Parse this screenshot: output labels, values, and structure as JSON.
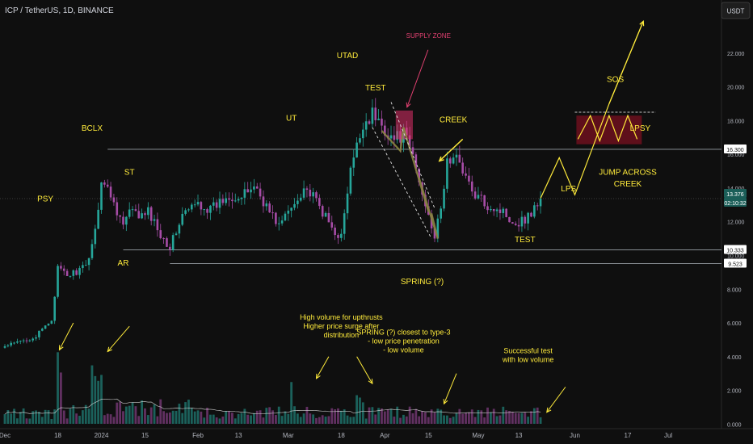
{
  "header": {
    "symbol": "ICP / TetherUS, 1D, BINANCE",
    "currency_button": "USDT"
  },
  "colors": {
    "background": "#0f0f0f",
    "up": "#26a69a",
    "down": "#a64ca6",
    "annotation": "#ffeb3b",
    "supply": "#e04070",
    "level_line": "#c9d1d9",
    "ma": "#e0e0e0",
    "axis_text": "#b2b5be"
  },
  "chart_data": {
    "type": "candlestick",
    "y_axis": {
      "ticks": [
        "22.000",
        "20.000",
        "18.000",
        "16.000",
        "14.000",
        "12.000",
        "10.000",
        "8.000",
        "6.000",
        "4.000",
        "2.000",
        "0.000"
      ],
      "tick_values": [
        22,
        20,
        18,
        16,
        14,
        12,
        10,
        8,
        6,
        4,
        2,
        0
      ],
      "ylim": [
        -0.2,
        24.6
      ]
    },
    "x_axis": {
      "ticks": [
        "Dec",
        "18",
        "2024",
        "15",
        "Feb",
        "13",
        "Mar",
        "18",
        "Apr",
        "15",
        "May",
        "13",
        "Jun",
        "17",
        "Jul"
      ],
      "tick_days": [
        0,
        17,
        31,
        45,
        62,
        75,
        91,
        108,
        122,
        136,
        152,
        165,
        183,
        200,
        213
      ]
    },
    "price_labels": [
      {
        "text": "16.300",
        "value": 16.3,
        "style": "level"
      },
      {
        "text": "13.376",
        "value": 13.376,
        "style": "last"
      },
      {
        "text": "02:10:32",
        "value": 13.376,
        "style": "timer"
      },
      {
        "text": "10.333",
        "value": 10.333,
        "style": "level"
      },
      {
        "text": "9.523",
        "value": 9.523,
        "style": "level"
      }
    ],
    "horizontal_levels": [
      {
        "value": 16.3,
        "start_day": 33
      },
      {
        "value": 10.333,
        "start_day": 38
      },
      {
        "value": 9.523,
        "start_day": 53
      }
    ],
    "current_price": 13.376,
    "anchors": [
      [
        0,
        4.6
      ],
      [
        10,
        5.2
      ],
      [
        15,
        6.2
      ],
      [
        17,
        9.2
      ],
      [
        20,
        8.8
      ],
      [
        26,
        9.3
      ],
      [
        29,
        11.5
      ],
      [
        31,
        14.5
      ],
      [
        34,
        13.6
      ],
      [
        38,
        11.8
      ],
      [
        40,
        12.6
      ],
      [
        44,
        12.3
      ],
      [
        46,
        12.6
      ],
      [
        50,
        11.3
      ],
      [
        53,
        10.5
      ],
      [
        57,
        12.4
      ],
      [
        62,
        13.1
      ],
      [
        66,
        12.7
      ],
      [
        72,
        13.6
      ],
      [
        76,
        13.4
      ],
      [
        80,
        14.2
      ],
      [
        85,
        12.6
      ],
      [
        88,
        11.8
      ],
      [
        93,
        13.1
      ],
      [
        96,
        14.1
      ],
      [
        100,
        13.2
      ],
      [
        105,
        11.6
      ],
      [
        108,
        11.1
      ],
      [
        111,
        15.0
      ],
      [
        115,
        17.8
      ],
      [
        118,
        18.4
      ],
      [
        121,
        17.7
      ],
      [
        125,
        16.9
      ],
      [
        128,
        17.2
      ],
      [
        131,
        15.9
      ],
      [
        134,
        13.6
      ],
      [
        136,
        12.6
      ],
      [
        138,
        11.1
      ],
      [
        140,
        12.7
      ],
      [
        142,
        15.6
      ],
      [
        146,
        15.7
      ],
      [
        150,
        13.7
      ],
      [
        155,
        13.0
      ],
      [
        160,
        12.6
      ],
      [
        164,
        11.9
      ],
      [
        168,
        12.3
      ],
      [
        172,
        13.4
      ]
    ],
    "volume": {
      "scale_max": 2.3,
      "spikes": [
        [
          17,
          6.0
        ],
        [
          18,
          4.3
        ],
        [
          28,
          4.9
        ],
        [
          29,
          4.0
        ],
        [
          30,
          3.6
        ],
        [
          31,
          4.1
        ],
        [
          92,
          3.5
        ],
        [
          113,
          2.4
        ],
        [
          114,
          2.2
        ],
        [
          115,
          1.8
        ],
        [
          137,
          1.2
        ]
      ]
    },
    "annotations": [
      {
        "text": "PSY",
        "day": 13,
        "value": 13.2
      },
      {
        "text": "BCLX",
        "day": 28,
        "value": 17.4
      },
      {
        "text": "ST",
        "day": 40,
        "value": 14.8
      },
      {
        "text": "AR",
        "day": 38,
        "value": 9.4
      },
      {
        "text": "UT",
        "day": 92,
        "value": 18.0
      },
      {
        "text": "UTAD",
        "day": 110,
        "value": 21.7
      },
      {
        "text": "TEST",
        "day": 119,
        "value": 19.8
      },
      {
        "text": "SUPPLY ZONE",
        "day": 136,
        "value": 22.9
      },
      {
        "text": "CREEK",
        "day": 144,
        "value": 17.9
      },
      {
        "text": "TEST",
        "day": 167,
        "value": 10.8
      },
      {
        "text": "SPRING (?)",
        "day": 134,
        "value": 8.3
      },
      {
        "text": "LPS",
        "day": 181,
        "value": 13.8
      },
      {
        "text": "SOS",
        "day": 196,
        "value": 20.3
      },
      {
        "text": "LPSY",
        "day": 204,
        "value": 17.4
      },
      {
        "text": "JUMP ACROSS",
        "day": 200,
        "value": 14.8
      },
      {
        "text": "CREEK",
        "day": 200,
        "value": 14.1
      }
    ],
    "notes": [
      {
        "lines": [
          "High volume for upthrusts",
          "Higher price surge after",
          "distribution"
        ],
        "day": 108,
        "value": 6.2
      },
      {
        "lines": [
          "SPRING (?) closest to type-3",
          "- low price penetration",
          "- low volume"
        ],
        "day": 128,
        "value": 5.3
      },
      {
        "lines": [
          "Successful test",
          "with low volume"
        ],
        "day": 168,
        "value": 4.2
      }
    ],
    "projection": [
      [
        172,
        13.4
      ],
      [
        178,
        15.8
      ],
      [
        183,
        13.6
      ],
      [
        194,
        19.0
      ],
      [
        205,
        23.9
      ]
    ],
    "lpsy_zigzag": [
      [
        184,
        16.9
      ],
      [
        188,
        18.3
      ],
      [
        191,
        16.8
      ],
      [
        194,
        18.3
      ],
      [
        197,
        16.8
      ],
      [
        200,
        18.3
      ],
      [
        203,
        16.9
      ]
    ],
    "lpsy_box": {
      "day0": 183.5,
      "day1": 204.5,
      "v_low": 16.6,
      "v_high": 18.3
    },
    "lpsy_dashed": {
      "day0": 183,
      "day1": 209,
      "value": 18.5
    },
    "supply_box": {
      "day0": 125.5,
      "day1": 131,
      "v_low": 16.9,
      "v_high": 18.6
    },
    "channel_upper": [
      [
        124,
        19.1
      ],
      [
        138,
        12.8
      ]
    ],
    "channel_lower": [
      [
        118,
        17.6
      ],
      [
        137,
        11.0
      ]
    ],
    "zigzag": [
      [
        121,
        17.4
      ],
      [
        127,
        16.2
      ],
      [
        128,
        17.6
      ],
      [
        136,
        12.6
      ],
      [
        133,
        14.6
      ],
      [
        139,
        11.0
      ],
      [
        137,
        12.5
      ]
    ]
  }
}
